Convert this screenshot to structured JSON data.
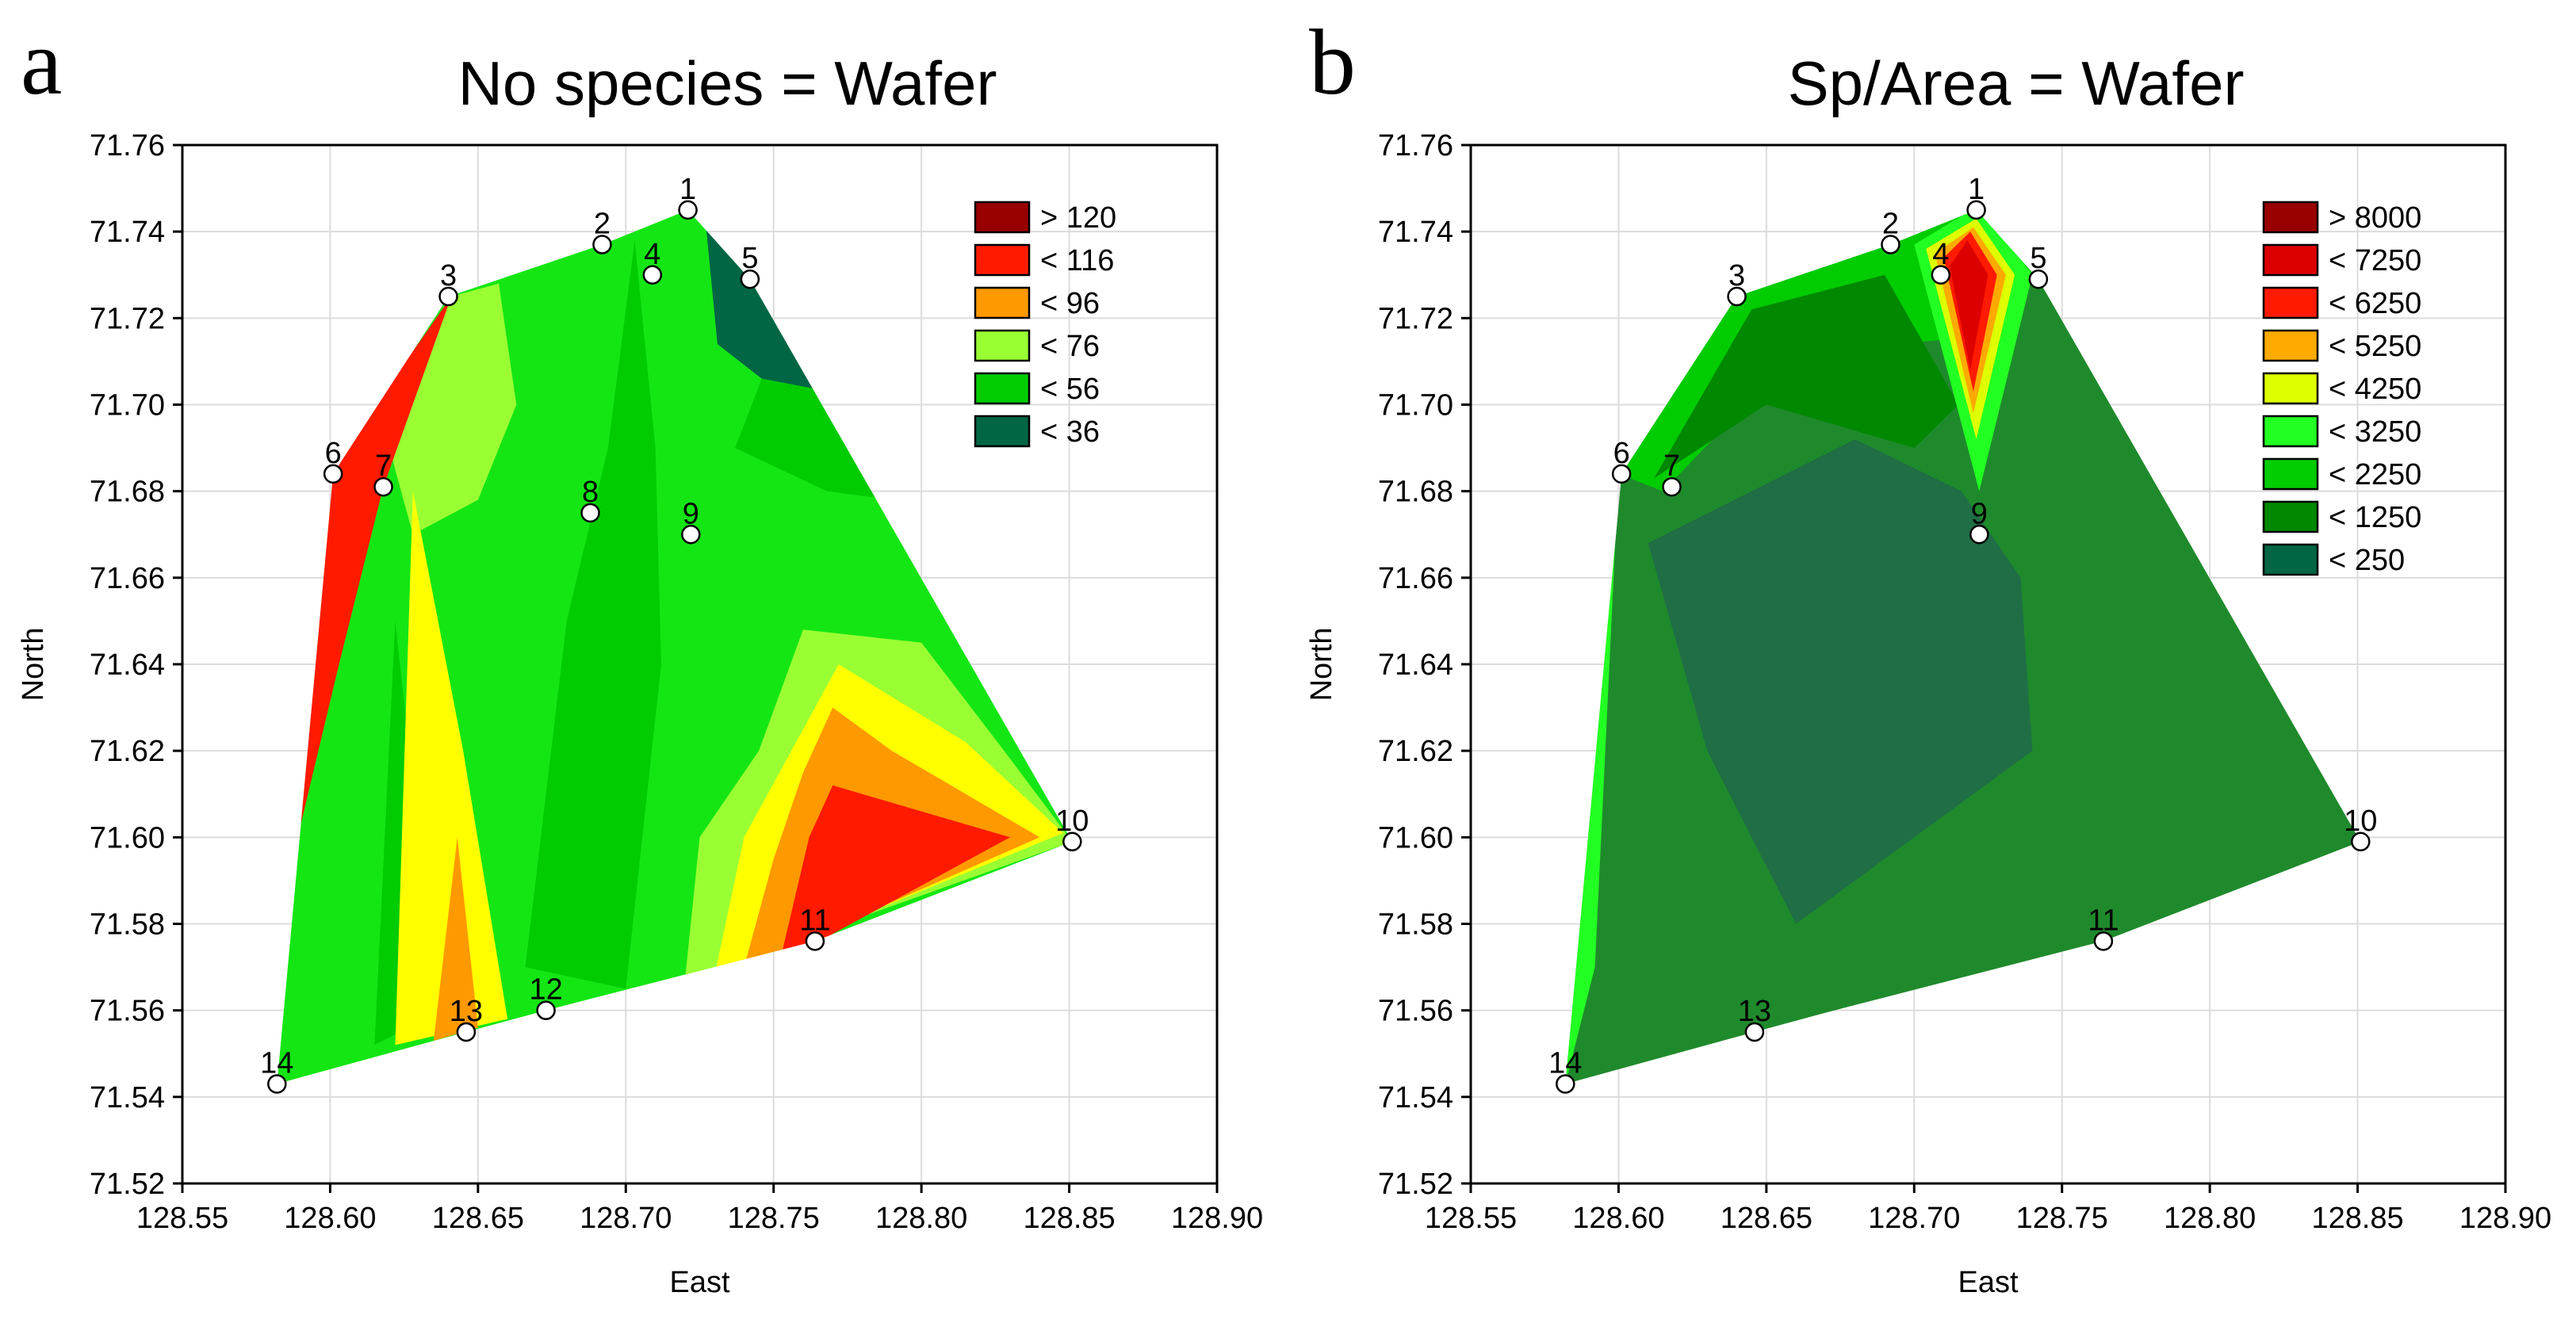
{
  "chart_data": [
    {
      "type": "contour",
      "panel_letter": "a",
      "title": "No species = Wafer",
      "xlabel": "East",
      "ylabel": "North",
      "xlim": [
        128.55,
        128.9
      ],
      "ylim": [
        71.52,
        71.76
      ],
      "xticks": [
        "128.55",
        "128.60",
        "128.65",
        "128.70",
        "128.75",
        "128.80",
        "128.85",
        "128.90"
      ],
      "yticks": [
        "71.52",
        "71.54",
        "71.56",
        "71.58",
        "71.60",
        "71.62",
        "71.64",
        "71.66",
        "71.68",
        "71.70",
        "71.72",
        "71.74",
        "71.76"
      ],
      "grid": true,
      "legend_position": "top-right",
      "legend": [
        {
          "label": "> 120",
          "color": "#990000"
        },
        {
          "label": "< 116",
          "color": "#ff1a00"
        },
        {
          "label": "< 96",
          "color": "#ff9900"
        },
        {
          "label": "< 76",
          "color": "#99ff33"
        },
        {
          "label": "< 56",
          "color": "#00cc00"
        },
        {
          "label": "< 36",
          "color": "#006644"
        }
      ],
      "base_fill": "#14e614",
      "stations": [
        {
          "label": "1",
          "east": 128.721,
          "north": 71.745
        },
        {
          "label": "2",
          "east": 128.692,
          "north": 71.737
        },
        {
          "label": "3",
          "east": 128.64,
          "north": 71.725
        },
        {
          "label": "4",
          "east": 128.709,
          "north": 71.73
        },
        {
          "label": "5",
          "east": 128.742,
          "north": 71.729
        },
        {
          "label": "6",
          "east": 128.601,
          "north": 71.684
        },
        {
          "label": "7",
          "east": 128.618,
          "north": 71.681
        },
        {
          "label": "8",
          "east": 128.688,
          "north": 71.675
        },
        {
          "label": "9",
          "east": 128.722,
          "north": 71.67
        },
        {
          "label": "10",
          "east": 128.851,
          "north": 71.599
        },
        {
          "label": "11",
          "east": 128.764,
          "north": 71.576
        },
        {
          "label": "12",
          "east": 128.673,
          "north": 71.56
        },
        {
          "label": "13",
          "east": 128.646,
          "north": 71.555
        },
        {
          "label": "14",
          "east": 128.582,
          "north": 71.543
        }
      ],
      "regions": [
        {
          "color": "#006644",
          "points": [
            [
              128.727,
              71.742
            ],
            [
              128.748,
              71.729
            ],
            [
              128.769,
              71.703
            ],
            [
              128.746,
              71.706
            ],
            [
              128.731,
              71.714
            ]
          ]
        },
        {
          "color": "#00cc00",
          "points": [
            [
              128.746,
              71.706
            ],
            [
              128.769,
              71.703
            ],
            [
              128.79,
              71.678
            ],
            [
              128.768,
              71.68
            ],
            [
              128.737,
              71.69
            ]
          ]
        },
        {
          "color": "#00cc00",
          "points": [
            [
              128.666,
              71.57
            ],
            [
              128.7,
              71.565
            ],
            [
              128.712,
              71.64
            ],
            [
              128.71,
              71.69
            ],
            [
              128.703,
              71.738
            ],
            [
              128.694,
              71.69
            ],
            [
              128.68,
              71.65
            ]
          ]
        },
        {
          "color": "#00cc00",
          "points": [
            [
              128.615,
              71.552
            ],
            [
              128.632,
              71.558
            ],
            [
              128.63,
              71.6
            ],
            [
              128.622,
              71.65
            ]
          ]
        },
        {
          "color": "#99ff33",
          "points": [
            [
              128.641,
              71.725
            ],
            [
              128.657,
              71.728
            ],
            [
              128.663,
              71.7
            ],
            [
              128.65,
              71.678
            ],
            [
              128.628,
              71.67
            ],
            [
              128.62,
              71.69
            ]
          ]
        },
        {
          "color": "#99ff33",
          "points": [
            [
              128.72,
              71.567
            ],
            [
              128.851,
              71.599
            ],
            [
              128.828,
              71.62
            ],
            [
              128.8,
              71.645
            ],
            [
              128.76,
              71.648
            ],
            [
              128.745,
              71.62
            ],
            [
              128.725,
              71.6
            ]
          ]
        },
        {
          "color": "#ffff00",
          "points": [
            [
              128.73,
              71.568
            ],
            [
              128.848,
              71.601
            ],
            [
              128.815,
              71.622
            ],
            [
              128.772,
              71.64
            ],
            [
              128.76,
              71.625
            ],
            [
              128.74,
              71.6
            ]
          ]
        },
        {
          "color": "#ff9900",
          "points": [
            [
              128.74,
              71.57
            ],
            [
              128.84,
              71.6
            ],
            [
              128.79,
              71.62
            ],
            [
              128.77,
              71.63
            ],
            [
              128.76,
              71.615
            ],
            [
              128.75,
              71.595
            ]
          ]
        },
        {
          "color": "#ff1a00",
          "points": [
            [
              128.752,
              71.571
            ],
            [
              128.83,
              71.6
            ],
            [
              128.78,
              71.61
            ],
            [
              128.77,
              71.612
            ],
            [
              128.762,
              71.6
            ]
          ]
        },
        {
          "color": "#ffff00",
          "points": [
            [
              128.622,
              71.552
            ],
            [
              128.66,
              71.558
            ],
            [
              128.645,
              71.62
            ],
            [
              128.628,
              71.68
            ]
          ]
        },
        {
          "color": "#ff9900",
          "points": [
            [
              128.635,
              71.553
            ],
            [
              128.65,
              71.556
            ],
            [
              128.643,
              71.6
            ]
          ]
        },
        {
          "color": "#ff1a00",
          "points": [
            [
              128.589,
              71.6
            ],
            [
              128.6,
              71.685
            ],
            [
              128.641,
              71.725
            ],
            [
              128.618,
              71.681
            ],
            [
              128.603,
              71.64
            ]
          ]
        }
      ]
    },
    {
      "type": "contour",
      "panel_letter": "b",
      "title": "Sp/Area = Wafer",
      "xlabel": "East",
      "ylabel": "North",
      "xlim": [
        128.55,
        128.9
      ],
      "ylim": [
        71.52,
        71.76
      ],
      "xticks": [
        "128.55",
        "128.60",
        "128.65",
        "128.70",
        "128.75",
        "128.80",
        "128.85",
        "128.90"
      ],
      "yticks": [
        "71.52",
        "71.54",
        "71.56",
        "71.58",
        "71.60",
        "71.62",
        "71.64",
        "71.66",
        "71.68",
        "71.70",
        "71.72",
        "71.74",
        "71.76"
      ],
      "grid": true,
      "legend_position": "top-right",
      "legend": [
        {
          "label": "> 8000",
          "color": "#990000"
        },
        {
          "label": "< 7250",
          "color": "#dd0000"
        },
        {
          "label": "< 6250",
          "color": "#ff1a00"
        },
        {
          "label": "< 5250",
          "color": "#ffaa00"
        },
        {
          "label": "< 4250",
          "color": "#ddff00"
        },
        {
          "label": "< 3250",
          "color": "#22ff22"
        },
        {
          "label": "< 2250",
          "color": "#00cc00"
        },
        {
          "label": "< 1250",
          "color": "#008800"
        },
        {
          "label": "< 250",
          "color": "#006644"
        }
      ],
      "base_fill": "#1f8a2c",
      "stations": [
        {
          "label": "1",
          "east": 128.721,
          "north": 71.745
        },
        {
          "label": "2",
          "east": 128.692,
          "north": 71.737
        },
        {
          "label": "3",
          "east": 128.64,
          "north": 71.725
        },
        {
          "label": "4",
          "east": 128.709,
          "north": 71.73
        },
        {
          "label": "5",
          "east": 128.742,
          "north": 71.729
        },
        {
          "label": "6",
          "east": 128.601,
          "north": 71.684
        },
        {
          "label": "7",
          "east": 128.618,
          "north": 71.681
        },
        {
          "label": "9",
          "east": 128.722,
          "north": 71.67
        },
        {
          "label": "10",
          "east": 128.851,
          "north": 71.599
        },
        {
          "label": "11",
          "east": 128.764,
          "north": 71.576
        },
        {
          "label": "13",
          "east": 128.646,
          "north": 71.555
        },
        {
          "label": "14",
          "east": 128.582,
          "north": 71.543
        }
      ],
      "regions": [
        {
          "color": "#00cc00",
          "points": [
            [
              128.6,
              71.684
            ],
            [
              128.641,
              71.726
            ],
            [
              128.694,
              71.738
            ],
            [
              128.722,
              71.746
            ],
            [
              128.742,
              71.73
            ],
            [
              128.71,
              71.715
            ],
            [
              128.66,
              71.712
            ],
            [
              128.615,
              71.68
            ]
          ]
        },
        {
          "color": "#008800",
          "points": [
            [
              128.612,
              71.683
            ],
            [
              128.645,
              71.722
            ],
            [
              128.69,
              71.73
            ],
            [
              128.715,
              71.7
            ],
            [
              128.7,
              71.69
            ],
            [
              128.65,
              71.7
            ]
          ]
        },
        {
          "color": "#1f6e45",
          "points": [
            [
              128.61,
              71.668
            ],
            [
              128.68,
              71.692
            ],
            [
              128.716,
              71.68
            ],
            [
              128.736,
              71.66
            ],
            [
              128.74,
              71.62
            ],
            [
              128.7,
              71.6
            ],
            [
              128.66,
              71.58
            ],
            [
              128.63,
              71.62
            ]
          ]
        },
        {
          "color": "#22ff22",
          "points": [
            [
              128.7,
              71.737
            ],
            [
              128.722,
              71.746
            ],
            [
              128.74,
              71.73
            ],
            [
              128.722,
              71.68
            ]
          ]
        },
        {
          "color": "#ddff00",
          "points": [
            [
              128.704,
              71.736
            ],
            [
              128.721,
              71.743
            ],
            [
              128.734,
              71.73
            ],
            [
              128.721,
              71.692
            ]
          ]
        },
        {
          "color": "#ffaa00",
          "points": [
            [
              128.707,
              71.735
            ],
            [
              128.72,
              71.741
            ],
            [
              128.731,
              71.73
            ],
            [
              128.72,
              71.698
            ]
          ]
        },
        {
          "color": "#ff1a00",
          "points": [
            [
              128.71,
              71.734
            ],
            [
              128.719,
              71.74
            ],
            [
              128.728,
              71.73
            ],
            [
              128.72,
              71.703
            ]
          ]
        },
        {
          "color": "#dd0000",
          "points": [
            [
              128.712,
              71.732
            ],
            [
              128.718,
              71.738
            ],
            [
              128.725,
              71.73
            ],
            [
              128.719,
              71.708
            ]
          ]
        },
        {
          "color": "#22ff22",
          "points": [
            [
              128.582,
              71.543
            ],
            [
              128.592,
              71.57
            ],
            [
              128.6,
              71.684
            ],
            [
              128.588,
              71.62
            ]
          ]
        }
      ]
    }
  ]
}
